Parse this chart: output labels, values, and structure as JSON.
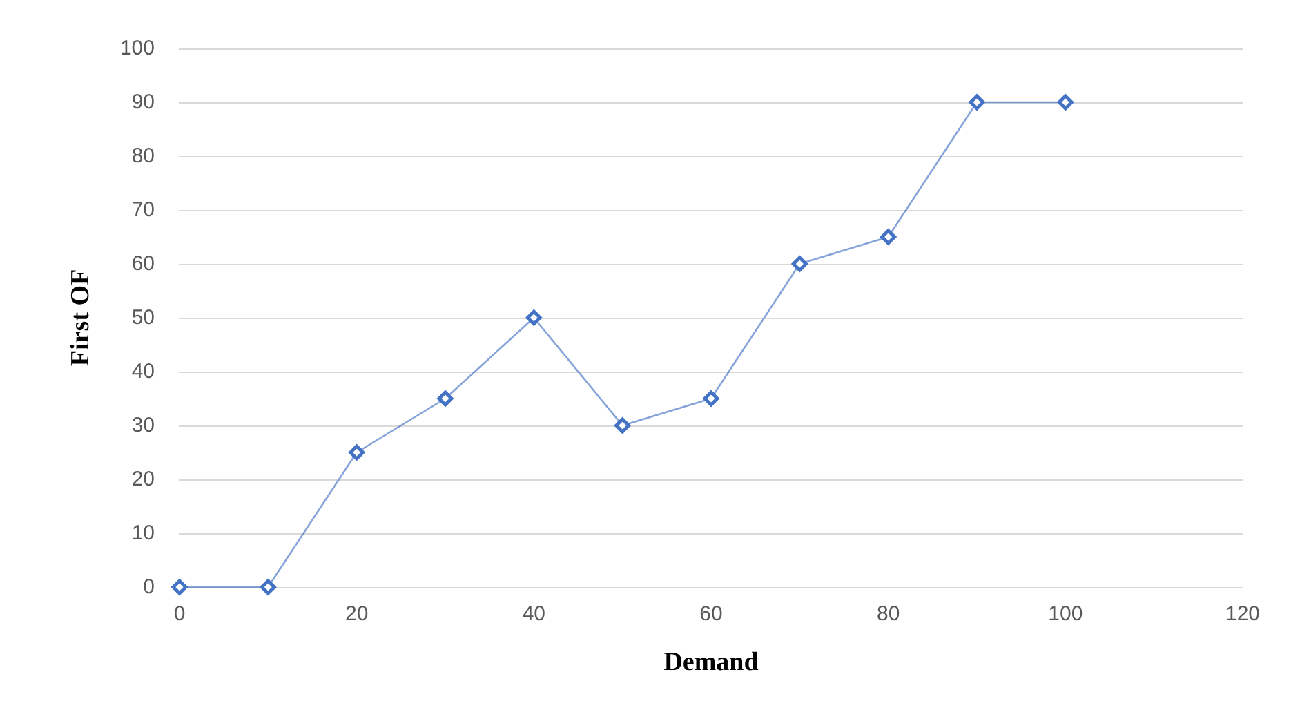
{
  "chart_data": {
    "type": "line",
    "xlabel": "Demand",
    "ylabel": "First OF",
    "x": [
      0,
      10,
      20,
      30,
      40,
      50,
      60,
      70,
      80,
      90,
      100
    ],
    "series": [
      {
        "color": "#4472c4",
        "values": [
          0,
          0,
          25,
          35,
          50,
          30,
          35,
          60,
          65,
          90,
          90
        ]
      }
    ],
    "xlim": [
      0,
      120
    ],
    "xticks": [
      0,
      20,
      40,
      60,
      80,
      100,
      120
    ],
    "ylim": [
      0,
      100
    ],
    "yticks": [
      0,
      10,
      20,
      30,
      40,
      50,
      60,
      70,
      80,
      90,
      100
    ],
    "grid": "y",
    "marker": "diamond",
    "line_style": "solid"
  }
}
